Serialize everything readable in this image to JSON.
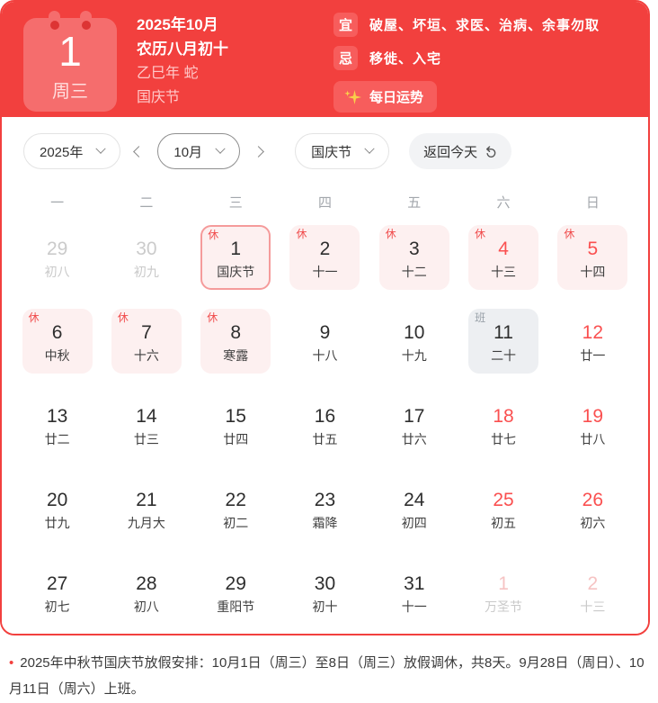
{
  "header": {
    "day_card": {
      "day": "1",
      "weekday": "周三"
    },
    "lines": {
      "year_month": "2025年10月",
      "lunar_date": "农历八月初十",
      "ganzhi": "乙巳年 蛇",
      "festival": "国庆节"
    },
    "almanac": {
      "yi_label": "宜",
      "yi_text": "破屋、坏垣、求医、治病、余事勿取",
      "ji_label": "忌",
      "ji_text": "移徙、入宅",
      "fortune_label": "每日运势",
      "sparkle_icon": "sparkle-stars",
      "sparkle_color": "#f9cf4a"
    }
  },
  "controls": {
    "year": "2025年",
    "month": "10月",
    "festival": "国庆节",
    "back_today": "返回今天",
    "prev_icon": "chevron-left",
    "next_icon": "chevron-right",
    "undo_icon": "undo-arrow"
  },
  "calendar": {
    "weekdays": [
      "一",
      "二",
      "三",
      "四",
      "五",
      "六",
      "日"
    ],
    "days": [
      {
        "day": "29",
        "lunar": "初八",
        "num": "prev",
        "box": "none",
        "badge": ""
      },
      {
        "day": "30",
        "lunar": "初九",
        "num": "prev",
        "box": "none",
        "badge": ""
      },
      {
        "day": "1",
        "lunar": "国庆节",
        "num": "dark",
        "box": "selected",
        "badge": "休"
      },
      {
        "day": "2",
        "lunar": "十一",
        "num": "dark",
        "box": "pink",
        "badge": "休"
      },
      {
        "day": "3",
        "lunar": "十二",
        "num": "dark",
        "box": "pink",
        "badge": "休"
      },
      {
        "day": "4",
        "lunar": "十三",
        "num": "red",
        "box": "pink",
        "badge": "休"
      },
      {
        "day": "5",
        "lunar": "十四",
        "num": "red",
        "box": "pink",
        "badge": "休"
      },
      {
        "day": "6",
        "lunar": "中秋",
        "num": "dark",
        "box": "pink",
        "badge": "休"
      },
      {
        "day": "7",
        "lunar": "十六",
        "num": "dark",
        "box": "pink",
        "badge": "休"
      },
      {
        "day": "8",
        "lunar": "寒露",
        "num": "dark",
        "box": "pink",
        "badge": "休"
      },
      {
        "day": "9",
        "lunar": "十八",
        "num": "dark",
        "box": "none",
        "badge": ""
      },
      {
        "day": "10",
        "lunar": "十九",
        "num": "dark",
        "box": "none",
        "badge": ""
      },
      {
        "day": "11",
        "lunar": "二十",
        "num": "dark",
        "box": "gray",
        "badge": "班"
      },
      {
        "day": "12",
        "lunar": "廿一",
        "num": "red",
        "box": "none",
        "badge": ""
      },
      {
        "day": "13",
        "lunar": "廿二",
        "num": "dark",
        "box": "none",
        "badge": ""
      },
      {
        "day": "14",
        "lunar": "廿三",
        "num": "dark",
        "box": "none",
        "badge": ""
      },
      {
        "day": "15",
        "lunar": "廿四",
        "num": "dark",
        "box": "none",
        "badge": ""
      },
      {
        "day": "16",
        "lunar": "廿五",
        "num": "dark",
        "box": "none",
        "badge": ""
      },
      {
        "day": "17",
        "lunar": "廿六",
        "num": "dark",
        "box": "none",
        "badge": ""
      },
      {
        "day": "18",
        "lunar": "廿七",
        "num": "red",
        "box": "none",
        "badge": ""
      },
      {
        "day": "19",
        "lunar": "廿八",
        "num": "red",
        "box": "none",
        "badge": ""
      },
      {
        "day": "20",
        "lunar": "廿九",
        "num": "dark",
        "box": "none",
        "badge": ""
      },
      {
        "day": "21",
        "lunar": "九月大",
        "num": "dark",
        "box": "none",
        "badge": ""
      },
      {
        "day": "22",
        "lunar": "初二",
        "num": "dark",
        "box": "none",
        "badge": ""
      },
      {
        "day": "23",
        "lunar": "霜降",
        "num": "dark",
        "box": "none",
        "badge": ""
      },
      {
        "day": "24",
        "lunar": "初四",
        "num": "dark",
        "box": "none",
        "badge": ""
      },
      {
        "day": "25",
        "lunar": "初五",
        "num": "red",
        "box": "none",
        "badge": ""
      },
      {
        "day": "26",
        "lunar": "初六",
        "num": "red",
        "box": "none",
        "badge": ""
      },
      {
        "day": "27",
        "lunar": "初七",
        "num": "dark",
        "box": "none",
        "badge": ""
      },
      {
        "day": "28",
        "lunar": "初八",
        "num": "dark",
        "box": "none",
        "badge": ""
      },
      {
        "day": "29",
        "lunar": "重阳节",
        "num": "dark",
        "box": "none",
        "badge": ""
      },
      {
        "day": "30",
        "lunar": "初十",
        "num": "dark",
        "box": "none",
        "badge": ""
      },
      {
        "day": "31",
        "lunar": "十一",
        "num": "dark",
        "box": "none",
        "badge": ""
      },
      {
        "day": "1",
        "lunar": "万圣节",
        "num": "next",
        "box": "none",
        "badge": ""
      },
      {
        "day": "2",
        "lunar": "十三",
        "num": "next",
        "box": "none",
        "badge": ""
      }
    ]
  },
  "note": "2025年中秋节国庆节放假安排：10月1日（周三）至8日（周三）放假调休，共8天。9月28日（周日）、10月11日（周六）上班。",
  "colors": {
    "accent_red": "#f2403e",
    "rest_badge_red": "#f04b4b",
    "weekend_red": "#fa5050",
    "work_badge_gray": "#98a0a8",
    "holiday_cell_pink": "#fdf0f0",
    "work_cell_gray": "#edeff2"
  }
}
